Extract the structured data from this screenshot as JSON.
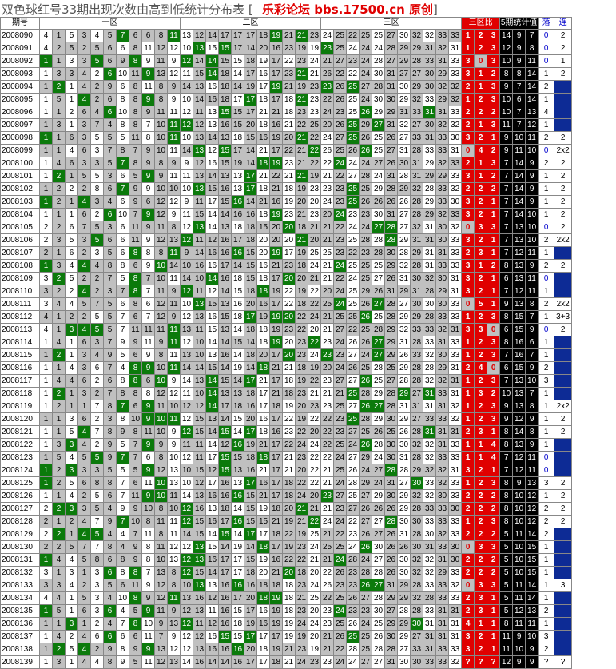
{
  "title": {
    "main": "双色球红号33期出现次数由高到低统计分布表 [",
    "brand": "乐彩论坛 bbs.17500.cn 原创",
    "close": "]"
  },
  "headers": {
    "period": "期号",
    "zone1": "一区",
    "zone2": "二区",
    "zone3": "三区",
    "ratio": "三区比",
    "stats": "5期统计值",
    "fall": "落",
    "link": "连"
  },
  "colors": {
    "hit": "#0b7a0b",
    "gray": "#c0c0c0",
    "red": "#e00000",
    "blue": "#0d2b95",
    "black": "#000000"
  },
  "rows": [
    {
      "p": "2008090",
      "hits": [
        7,
        11,
        19,
        21
      ],
      "ratio": [
        "1",
        "2",
        "3"
      ],
      "stats": [
        "14",
        "9",
        "7"
      ],
      "fall": "0",
      "link": "2"
    },
    {
      "p": "2008091",
      "hits": [
        13,
        15,
        23
      ],
      "ratio": [
        "1",
        "2",
        "3"
      ],
      "stats": [
        "12",
        "9",
        "8"
      ],
      "fall": "0",
      "link": "2"
    },
    {
      "p": "2008092",
      "hits": [
        1,
        5,
        8,
        12,
        14
      ],
      "ratio": [
        "3",
        "0",
        "3"
      ],
      "stats": [
        "10",
        "9",
        "11"
      ],
      "fall": "0",
      "link": "1"
    },
    {
      "p": "2008093",
      "hits": [
        6,
        9,
        14,
        21
      ],
      "ratio": [
        "3",
        "1",
        "2"
      ],
      "stats": [
        "8",
        "8",
        "14"
      ],
      "fall": "1",
      "link": "2"
    },
    {
      "p": "2008094",
      "hits": [
        2,
        19,
        23,
        25
      ],
      "ratio": [
        "2",
        "1",
        "3"
      ],
      "stats": [
        "9",
        "7",
        "14"
      ],
      "fall": "2",
      "link": ""
    },
    {
      "p": "2008095",
      "hits": [
        4,
        9,
        17,
        21
      ],
      "ratio": [
        "1",
        "2",
        "3"
      ],
      "stats": [
        "10",
        "6",
        "14"
      ],
      "fall": "1",
      "link": ""
    },
    {
      "p": "2008096",
      "hits": [
        6,
        15,
        26,
        31
      ],
      "ratio": [
        "2",
        "2",
        "2"
      ],
      "stats": [
        "10",
        "7",
        "13"
      ],
      "fall": "4",
      "link": ""
    },
    {
      "p": "2008097",
      "hits": [
        11,
        12,
        25,
        27
      ],
      "ratio": [
        "2",
        "1",
        "3"
      ],
      "stats": [
        "11",
        "7",
        "12"
      ],
      "fall": "1",
      "link": ""
    },
    {
      "p": "2008098",
      "hits": [
        1,
        11,
        21,
        25
      ],
      "ratio": [
        "3",
        "2",
        "1"
      ],
      "stats": [
        "9",
        "10",
        "11"
      ],
      "fall": "2",
      "link": "2"
    },
    {
      "p": "2008099",
      "hits": [
        13,
        15,
        22,
        26
      ],
      "ratio": [
        "0",
        "4",
        "2"
      ],
      "stats": [
        "9",
        "11",
        "10"
      ],
      "fall": "0",
      "link": "2x2"
    },
    {
      "p": "2008100",
      "hits": [
        7,
        18,
        19,
        24
      ],
      "ratio": [
        "2",
        "1",
        "3"
      ],
      "stats": [
        "7",
        "14",
        "9"
      ],
      "fall": "2",
      "link": "2"
    },
    {
      "p": "2008101",
      "hits": [
        2,
        9,
        17,
        21
      ],
      "ratio": [
        "3",
        "1",
        "2"
      ],
      "stats": [
        "7",
        "14",
        "9"
      ],
      "fall": "1",
      "link": "2"
    },
    {
      "p": "2008102",
      "hits": [
        7,
        13,
        17,
        25
      ],
      "ratio": [
        "2",
        "2",
        "2"
      ],
      "stats": [
        "7",
        "14",
        "9"
      ],
      "fall": "1",
      "link": "2"
    },
    {
      "p": "2008103",
      "hits": [
        1,
        4,
        16,
        25
      ],
      "ratio": [
        "3",
        "2",
        "1"
      ],
      "stats": [
        "7",
        "14",
        "9"
      ],
      "fall": "1",
      "link": "2"
    },
    {
      "p": "2008104",
      "hits": [
        6,
        9,
        19,
        24
      ],
      "ratio": [
        "3",
        "2",
        "1"
      ],
      "stats": [
        "7",
        "14",
        "10"
      ],
      "fall": "1",
      "link": "2"
    },
    {
      "p": "2008105",
      "hits": [
        13,
        20,
        27,
        28
      ],
      "ratio": [
        "0",
        "3",
        "3"
      ],
      "stats": [
        "7",
        "13",
        "10"
      ],
      "fall": "0",
      "link": "2"
    },
    {
      "p": "2008106",
      "hits": [
        5,
        12,
        21,
        28
      ],
      "ratio": [
        "3",
        "2",
        "1"
      ],
      "stats": [
        "7",
        "13",
        "10"
      ],
      "fall": "2",
      "link": "2x2"
    },
    {
      "p": "2008107",
      "hits": [
        8,
        11,
        16,
        19
      ],
      "ratio": [
        "2",
        "3",
        "1"
      ],
      "stats": [
        "7",
        "12",
        "11"
      ],
      "fall": "1",
      "link": ""
    },
    {
      "p": "2008108",
      "hits": [
        1,
        4,
        10,
        24
      ],
      "ratio": [
        "3",
        "1",
        "2"
      ],
      "stats": [
        "8",
        "13",
        "9"
      ],
      "fall": "2",
      "link": "2"
    },
    {
      "p": "2008109",
      "hits": [
        2,
        8,
        14,
        20
      ],
      "ratio": [
        "3",
        "2",
        "1"
      ],
      "stats": [
        "6",
        "13",
        "11"
      ],
      "fall": "0",
      "link": ""
    },
    {
      "p": "2008110",
      "hits": [
        4,
        8,
        12,
        18
      ],
      "ratio": [
        "3",
        "2",
        "1"
      ],
      "stats": [
        "7",
        "12",
        "11"
      ],
      "fall": "1",
      "link": ""
    },
    {
      "p": "2008111",
      "hits": [
        13,
        24,
        27
      ],
      "ratio": [
        "0",
        "5",
        "1"
      ],
      "stats": [
        "9",
        "13",
        "8"
      ],
      "fall": "2",
      "link": "2x2"
    },
    {
      "p": "2008112",
      "hits": [
        17,
        19,
        20,
        26
      ],
      "ratio": [
        "1",
        "2",
        "3"
      ],
      "stats": [
        "8",
        "15",
        "7"
      ],
      "fall": "1",
      "link": "3+3"
    },
    {
      "p": "2008113",
      "hits": [
        3,
        4,
        5,
        11
      ],
      "ratio": [
        "3",
        "3",
        "0"
      ],
      "stats": [
        "6",
        "15",
        "9"
      ],
      "fall": "0",
      "link": "2"
    },
    {
      "p": "2008114",
      "hits": [
        11,
        19,
        22,
        27
      ],
      "ratio": [
        "1",
        "2",
        "3"
      ],
      "stats": [
        "8",
        "16",
        "6"
      ],
      "fall": "1",
      "link": ""
    },
    {
      "p": "2008115",
      "hits": [
        2,
        20,
        23,
        27
      ],
      "ratio": [
        "1",
        "2",
        "3"
      ],
      "stats": [
        "7",
        "16",
        "7"
      ],
      "fall": "1",
      "link": ""
    },
    {
      "p": "2008116",
      "hits": [
        8,
        9,
        11,
        18
      ],
      "ratio": [
        "2",
        "4",
        "0"
      ],
      "stats": [
        "6",
        "15",
        "9"
      ],
      "fall": "2",
      "link": ""
    },
    {
      "p": "2008117",
      "hits": [
        8,
        10,
        14,
        17,
        26
      ],
      "ratio": [
        "1",
        "2",
        "3"
      ],
      "stats": [
        "7",
        "13",
        "10"
      ],
      "fall": "3",
      "link": ""
    },
    {
      "p": "2008118",
      "hits": [
        2,
        14,
        25,
        29,
        31
      ],
      "ratio": [
        "1",
        "3",
        "2"
      ],
      "stats": [
        "10",
        "13",
        "7"
      ],
      "fall": "1",
      "link": ""
    },
    {
      "p": "2008119",
      "hits": [
        7,
        9,
        14,
        26,
        27
      ],
      "ratio": [
        "1",
        "2",
        "3"
      ],
      "stats": [
        "9",
        "13",
        "8"
      ],
      "fall": "1",
      "link": "2x2"
    },
    {
      "p": "2008120",
      "hits": [
        9,
        10,
        11,
        25
      ],
      "ratio": [
        "1",
        "2",
        "3"
      ],
      "stats": [
        "9",
        "12",
        "9"
      ],
      "fall": "1",
      "link": "2"
    },
    {
      "p": "2008121",
      "hits": [
        4,
        12,
        15,
        17,
        31
      ],
      "ratio": [
        "2",
        "3",
        "1"
      ],
      "stats": [
        "8",
        "14",
        "8"
      ],
      "fall": "1",
      "link": "2"
    },
    {
      "p": "2008122",
      "hits": [
        3,
        9,
        16,
        26
      ],
      "ratio": [
        "1",
        "1",
        "4"
      ],
      "stats": [
        "8",
        "13",
        "9"
      ],
      "fall": "1",
      "link": ""
    },
    {
      "p": "2008123",
      "hits": [
        5,
        7,
        15,
        18
      ],
      "ratio": [
        "1",
        "1",
        "4"
      ],
      "stats": [
        "7",
        "12",
        "11"
      ],
      "fall": "0",
      "link": ""
    },
    {
      "p": "2008124",
      "hits": [
        1,
        3,
        9,
        15,
        28
      ],
      "ratio": [
        "3",
        "2",
        "1"
      ],
      "stats": [
        "7",
        "12",
        "11"
      ],
      "fall": "0",
      "link": ""
    },
    {
      "p": "2008125",
      "hits": [
        1,
        10,
        17,
        30
      ],
      "ratio": [
        "1",
        "2",
        "3"
      ],
      "stats": [
        "8",
        "9",
        "13"
      ],
      "fall": "3",
      "link": "2"
    },
    {
      "p": "2008126",
      "hits": [
        9,
        10,
        16,
        23
      ],
      "ratio": [
        "2",
        "2",
        "2"
      ],
      "stats": [
        "8",
        "10",
        "12"
      ],
      "fall": "1",
      "link": "2"
    },
    {
      "p": "2008127",
      "hits": [
        2,
        3,
        12,
        21
      ],
      "ratio": [
        "2",
        "2",
        "2"
      ],
      "stats": [
        "8",
        "10",
        "12"
      ],
      "fall": "2",
      "link": "2"
    },
    {
      "p": "2008128",
      "hits": [
        7,
        12,
        16,
        22,
        28
      ],
      "ratio": [
        "1",
        "2",
        "3"
      ],
      "stats": [
        "8",
        "10",
        "12"
      ],
      "fall": "2",
      "link": "2"
    },
    {
      "p": "2008129",
      "hits": [
        2,
        4,
        5,
        15,
        17
      ],
      "ratio": [
        "2",
        "2",
        "2"
      ],
      "stats": [
        "5",
        "11",
        "14"
      ],
      "fall": "2",
      "link": ""
    },
    {
      "p": "2008130",
      "hits": [
        13,
        18,
        26
      ],
      "ratio": [
        "0",
        "3",
        "3"
      ],
      "stats": [
        "5",
        "10",
        "15"
      ],
      "fall": "1",
      "link": ""
    },
    {
      "p": "2008131",
      "hits": [
        1,
        12,
        13,
        24
      ],
      "ratio": [
        "2",
        "2",
        "2"
      ],
      "stats": [
        "5",
        "10",
        "15"
      ],
      "fall": "1",
      "link": ""
    },
    {
      "p": "2008132",
      "hits": [
        6,
        8,
        12,
        20
      ],
      "ratio": [
        "2",
        "2",
        "2"
      ],
      "stats": [
        "5",
        "10",
        "15"
      ],
      "fall": "1",
      "link": ""
    },
    {
      "p": "2008133",
      "hits": [
        13,
        16,
        26,
        27
      ],
      "ratio": [
        "0",
        "3",
        "3"
      ],
      "stats": [
        "5",
        "11",
        "14"
      ],
      "fall": "1",
      "link": "3"
    },
    {
      "p": "2008134",
      "hits": [
        8,
        11,
        18,
        19
      ],
      "ratio": [
        "2",
        "3",
        "1"
      ],
      "stats": [
        "5",
        "11",
        "14"
      ],
      "fall": "1",
      "link": ""
    },
    {
      "p": "2008135",
      "hits": [
        1,
        6,
        9,
        24
      ],
      "ratio": [
        "2",
        "3",
        "1"
      ],
      "stats": [
        "5",
        "12",
        "13"
      ],
      "fall": "2",
      "link": ""
    },
    {
      "p": "2008136",
      "hits": [
        3,
        8,
        12,
        30
      ],
      "ratio": [
        "4",
        "1",
        "1"
      ],
      "stats": [
        "8",
        "11",
        "11"
      ],
      "fall": "1",
      "link": ""
    },
    {
      "p": "2008137",
      "hits": [
        6,
        15,
        17,
        25
      ],
      "ratio": [
        "3",
        "2",
        "1"
      ],
      "stats": [
        "11",
        "9",
        "10"
      ],
      "fall": "3",
      "link": ""
    },
    {
      "p": "2008138",
      "hits": [
        2,
        4,
        9,
        16
      ],
      "ratio": [
        "3",
        "2",
        "1"
      ],
      "stats": [
        "11",
        "10",
        "9"
      ],
      "fall": "2",
      "link": ""
    },
    {
      "p": "2008139",
      "hits": [],
      "ratio": [
        "?",
        "?",
        "?"
      ],
      "stats": [
        "12",
        "9",
        "9"
      ],
      "fall": "?",
      "link": "?"
    }
  ]
}
